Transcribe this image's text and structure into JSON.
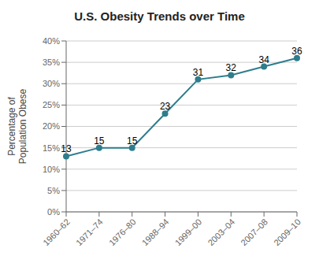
{
  "chart_data": {
    "type": "line",
    "title": "U.S. Obesity Trends over Time",
    "ylabel": "Percentage of\nPopulation Obese",
    "categories": [
      "1960–62",
      "1971–74",
      "1976–80",
      "1988–94",
      "1999–00",
      "2003–04",
      "2007–08",
      "2009–10"
    ],
    "values": [
      13,
      15,
      15,
      23,
      31,
      32,
      34,
      36
    ],
    "color": "#2e7d8c",
    "marker": "circle",
    "ylim": [
      0,
      40
    ],
    "yticks": [
      {
        "value": 0,
        "label": "0%"
      },
      {
        "value": 5,
        "label": "5%"
      },
      {
        "value": 10,
        "label": "10%"
      },
      {
        "value": 15,
        "label": "15%"
      },
      {
        "value": 20,
        "label": "20%"
      },
      {
        "value": 25,
        "label": "25%"
      },
      {
        "value": 30,
        "label": "30%"
      },
      {
        "value": 35,
        "label": "35%"
      },
      {
        "value": 40,
        "label": "40%"
      }
    ],
    "grid": true,
    "data_labels": true
  }
}
